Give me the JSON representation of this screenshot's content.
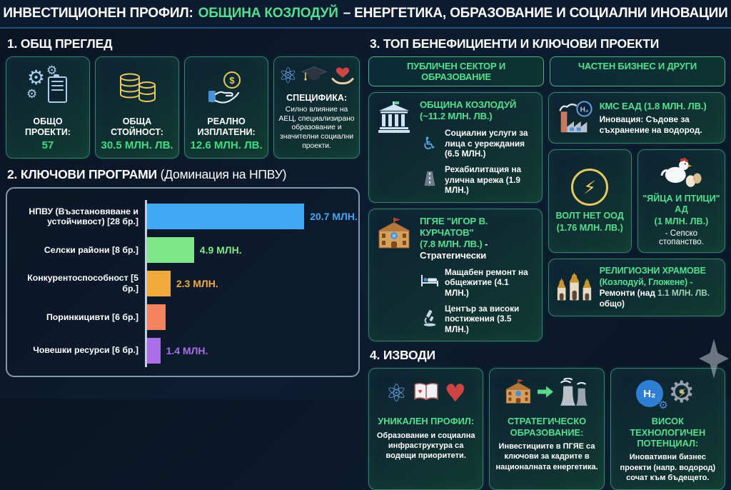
{
  "header": {
    "title_prefix": "ИНВЕСТИЦИОНЕН ПРОФИЛ:",
    "title_highlight": "ОБЩИНА КОЗЛОДУЙ",
    "title_suffix": "– ЕНЕРГЕТИКА, ОБРАЗОВАНИЕ И СОЦИАЛНИ ИНОВАЦИИ"
  },
  "overview": {
    "title": "1. ОБЩ ПРЕГЛЕД",
    "cards": [
      {
        "icon": "gears-checklist-icon",
        "label": "ОБЩО ПРОЕКТИ:",
        "value": "57"
      },
      {
        "icon": "coins-icon",
        "label": "ОБЩА СТОЙНОСТ:",
        "value": "30.5 МЛН. ЛВ."
      },
      {
        "icon": "hand-coin-icon",
        "label": "РЕАЛНО ИЗПЛАТЕНИ:",
        "value": "12.6 МЛН. ЛВ."
      }
    ],
    "spec_label": "СПЕЦИФИКА:",
    "spec_text": "Силно влияние на АЕЦ, специализирано образование и значителни социални проекти."
  },
  "programs": {
    "title": "2. КЛЮЧОВИ ПРОГРАМИ",
    "note": "(Доминация на НПВУ)"
  },
  "chart_data": {
    "type": "bar",
    "orientation": "horizontal",
    "title": "КЛЮЧОВИ ПРОГРАМИ (Доминация на НПВУ)",
    "categories": [
      "НПВУ (Възстановяване и устойчивост) [28 бр.]",
      "Селски райони [8 бр.]",
      "Конкурентоспособност [5 бр.]",
      "Поринкицивти [6 бр.]",
      "Човешки ресурси [6 бр.]"
    ],
    "values": [
      20.7,
      4.9,
      2.3,
      1.9,
      1.4
    ],
    "display_labels": [
      "20.7 МЛН.",
      "4.9 МЛН.",
      "2.3 МЛН.",
      "",
      "1.4 МЛН."
    ],
    "unlabeled_bars": [
      3
    ],
    "unit": "МЛН. ЛВ.",
    "colors": [
      "#3fa9f5",
      "#7ee787",
      "#f2a93c",
      "#f5835e",
      "#a96ee8"
    ],
    "bar_pct": [
      77,
      23,
      11.5,
      9,
      6.5
    ],
    "xlim": [
      0,
      21
    ],
    "grid": false,
    "legend": false,
    "value_label_position": "right-of-bar"
  },
  "beneficiaries": {
    "title": "3. ТОП БЕНЕФИЦИЕНТИ И КЛЮЧОВИ ПРОЕКТИ",
    "public": {
      "header": "ПУБЛИЧЕН СЕКТОР И ОБРАЗОВАНИЕ",
      "municipality": {
        "icon": "government-building-icon",
        "title_line1": "ОБЩИНА КОЗЛОДУЙ",
        "title_line2": "(~11.2 МЛН. ЛВ.)",
        "bullets": [
          {
            "icon": "wheelchair-icon",
            "text": "Социални услуги за лица с уереждания (6.5 МЛН.)"
          },
          {
            "icon": "road-icon",
            "text": "Рехабилитация на улична мрежа (1.9 МЛН.)"
          }
        ]
      },
      "school": {
        "icon": "school-building-icon",
        "title_line1": "ПГЯЕ \"ИГОР В. КУРЧАТОВ\"",
        "title_line2": "(7.8 МЛН. ЛВ.)",
        "title_suffix": " - Стратегически",
        "bullets": [
          {
            "icon": "bed-icon",
            "text": "Мащабен ремонт на общежитие (4.1 МЛН.)"
          },
          {
            "icon": "microscope-icon",
            "text": "Център за високи постижения (3.5 МЛН.)"
          }
        ]
      }
    },
    "private": {
      "header": "ЧАСТЕН БИЗНЕС И ДРУГИ",
      "kms": {
        "icon": "hydrogen-factory-icon",
        "title": "КМС ЕАД (1.8 МЛН. ЛВ.)",
        "text": "Иновация: Съдове за съхранение на водород."
      },
      "volt": {
        "icon": "lightning-icon",
        "title": "ВОЛТ НЕТ ООД",
        "subtitle": "(1.76 МЛН. ЛВ.)"
      },
      "eggs": {
        "icon": "chicken-eggs-icon",
        "title": "\"ЯЙЦА И ПТИЦИ\" АД",
        "subtitle": "(1 МЛН. ЛВ.)",
        "text": "- Сепско стопанство."
      },
      "temples": {
        "icon": "church-icon",
        "title_line1": "РЕЛИГИОЗНИ ХРАМОВЕ",
        "title_line2": "(Козлодуй, Гложене) -",
        "text_prefix": "Ремонти (над ",
        "text_value": "1.1 МЛН. ЛВ.",
        "text_suffix": " общо)"
      }
    }
  },
  "conclusions": {
    "title": "4. ИЗВОДИ",
    "cards": [
      {
        "icons": "atom-book-heart-icons",
        "heading": "УНИКАЛЕН ПРОФИЛ:",
        "text": "Образование и социална инфраструктура са водещи приоритети."
      },
      {
        "icons": "school-arrow-powerplant-icons",
        "heading": "СТРАТЕГИЧЕСКО ОБРАЗОВАНИЕ:",
        "text": "Инвестициите в ПГЯЕ са ключови за кадрите в националната енергетика."
      },
      {
        "icons": "hydrogen-gear-icons",
        "heading": "ВИСОК ТЕХНОЛОГИЧЕН ПОТЕНЦИАЛ:",
        "text": "Иновативни бизнес проекти (напр. водород) сочат към бъдещето."
      }
    ]
  },
  "colors": {
    "accent_green": "#52e090",
    "value_green": "#3ede82",
    "header_bg": "#0d1b30",
    "card_border": "#37826a",
    "bar_blue": "#3fa9f5",
    "bar_green": "#7ee787",
    "bar_orange": "#f2a93c",
    "bar_salmon": "#f5835e",
    "bar_purple": "#a96ee8"
  }
}
